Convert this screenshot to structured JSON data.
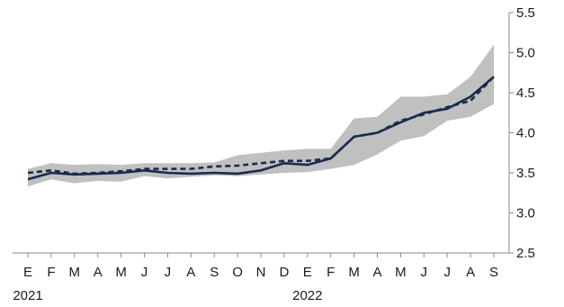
{
  "chart_data": {
    "type": "line",
    "title": "",
    "xlabel": "",
    "ylabel": "",
    "ylim": [
      2.5,
      5.5
    ],
    "y_axis_position": "right",
    "y_ticks": [
      "5.5",
      "5.0",
      "4.5",
      "4.0",
      "3.5",
      "3.0",
      "2.5"
    ],
    "y_tick_values": [
      5.5,
      5.0,
      4.5,
      4.0,
      3.5,
      3.0,
      2.5
    ],
    "grid": false,
    "legend": "none",
    "categories": [
      "E",
      "F",
      "M",
      "A",
      "M",
      "J",
      "J",
      "A",
      "S",
      "O",
      "N",
      "D",
      "E",
      "F",
      "M",
      "A",
      "M",
      "J",
      "J",
      "A",
      "S"
    ],
    "years": [
      {
        "label": "2021",
        "index": 0
      },
      {
        "label": "2022",
        "index": 12
      }
    ],
    "band": {
      "upper": [
        3.55,
        3.62,
        3.6,
        3.61,
        3.6,
        3.62,
        3.62,
        3.62,
        3.63,
        3.72,
        3.75,
        3.78,
        3.8,
        3.8,
        4.18,
        4.2,
        4.45,
        4.45,
        4.48,
        4.7,
        5.1
      ],
      "lower": [
        3.33,
        3.42,
        3.37,
        3.4,
        3.39,
        3.46,
        3.43,
        3.45,
        3.47,
        3.46,
        3.48,
        3.5,
        3.51,
        3.55,
        3.6,
        3.73,
        3.9,
        3.96,
        4.15,
        4.2,
        4.36
      ],
      "color": "#c0c0c0"
    },
    "series": [
      {
        "style": "solid",
        "color": "#1a2b4c",
        "values": [
          3.42,
          3.5,
          3.48,
          3.49,
          3.5,
          3.53,
          3.5,
          3.49,
          3.5,
          3.49,
          3.53,
          3.62,
          3.6,
          3.68,
          3.95,
          4.0,
          4.13,
          4.25,
          4.3,
          4.45,
          4.7
        ]
      },
      {
        "style": "dashed",
        "color": "#1a2b4c",
        "values": [
          3.5,
          3.53,
          3.49,
          3.5,
          3.52,
          3.55,
          3.55,
          3.55,
          3.58,
          3.59,
          3.62,
          3.65,
          3.65,
          3.68,
          3.95,
          4.0,
          4.15,
          4.23,
          4.32,
          4.4,
          4.7
        ]
      }
    ]
  }
}
